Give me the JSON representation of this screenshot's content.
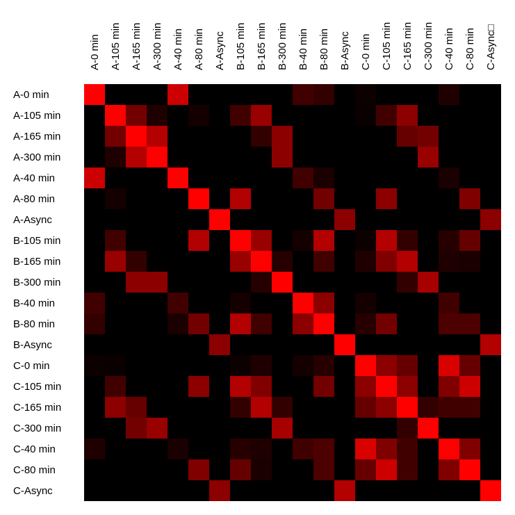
{
  "chart_data": {
    "type": "heatmap",
    "labels": [
      "A-0 min",
      "A-105 min",
      "A-165 min",
      "A-300 min",
      "A-40 min",
      "A-80 min",
      "A-Async",
      "B-105 min",
      "B-165 min",
      "B-300 min",
      "B-40 min",
      "B-80 min",
      "B-Async",
      "C-0 min",
      "C-105 min",
      "C-165 min",
      "C-300 min",
      "C-40 min",
      "C-80 min",
      "C-Async"
    ],
    "col_labels": [
      "A-0 min",
      "A-105 min",
      "A-165 min",
      "A-300 min",
      "A-40 min",
      "A-80 min",
      "A-Async",
      "B-105 min",
      "B-165 min",
      "B-300 min",
      "B-40 min",
      "B-80 min",
      "B-Async",
      "C-0 min",
      "C-105 min",
      "C-165 min",
      "C-300 min",
      "C-40 min",
      "C-80 min",
      "C-Async□"
    ],
    "color_low": "#000000",
    "color_high": "#ff0000",
    "value_range": [
      0,
      1
    ],
    "matrix": [
      [
        1.0,
        0,
        0,
        0,
        0.8,
        0,
        0,
        0,
        0,
        0,
        0.25,
        0.2,
        0,
        0.05,
        0,
        0,
        0,
        0.12,
        0,
        0
      ],
      [
        0,
        1.0,
        0.45,
        0.12,
        0,
        0.08,
        0,
        0.25,
        0.6,
        0,
        0,
        0,
        0,
        0.04,
        0.25,
        0.55,
        0,
        0,
        0,
        0
      ],
      [
        0,
        0.45,
        1.0,
        0.7,
        0,
        0,
        0,
        0,
        0.2,
        0.55,
        0,
        0,
        0,
        0,
        0,
        0.4,
        0.45,
        0,
        0,
        0
      ],
      [
        0,
        0.12,
        0.7,
        1.0,
        0,
        0,
        0,
        0,
        0,
        0.55,
        0,
        0,
        0,
        0,
        0,
        0,
        0.6,
        0,
        0,
        0
      ],
      [
        0.8,
        0,
        0,
        0,
        1.0,
        0,
        0,
        0,
        0,
        0,
        0.25,
        0.1,
        0,
        0,
        0,
        0,
        0,
        0.1,
        0,
        0
      ],
      [
        0,
        0.08,
        0,
        0,
        0,
        1.0,
        0,
        0.7,
        0,
        0,
        0,
        0.45,
        0,
        0,
        0.55,
        0,
        0,
        0,
        0.5,
        0
      ],
      [
        0,
        0,
        0,
        0,
        0,
        0,
        1.0,
        0,
        0,
        0,
        0,
        0,
        0.55,
        0,
        0,
        0,
        0,
        0,
        0,
        0.55
      ],
      [
        0,
        0.25,
        0,
        0,
        0,
        0.7,
        0,
        1.0,
        0.6,
        0,
        0.08,
        0.7,
        0,
        0.05,
        0.7,
        0.2,
        0,
        0.15,
        0.4,
        0
      ],
      [
        0,
        0.6,
        0.2,
        0,
        0,
        0,
        0,
        0.6,
        1.0,
        0.15,
        0,
        0.25,
        0,
        0.12,
        0.5,
        0.7,
        0,
        0.12,
        0.1,
        0
      ],
      [
        0,
        0,
        0.55,
        0.55,
        0,
        0,
        0,
        0,
        0.15,
        1.0,
        0,
        0,
        0,
        0,
        0,
        0.2,
        0.65,
        0,
        0,
        0
      ],
      [
        0.25,
        0,
        0,
        0,
        0.25,
        0,
        0,
        0.08,
        0,
        0,
        1.0,
        0.55,
        0,
        0.08,
        0,
        0,
        0,
        0.25,
        0,
        0
      ],
      [
        0.2,
        0,
        0,
        0,
        0.1,
        0.45,
        0,
        0.7,
        0.25,
        0,
        0.55,
        1.0,
        0,
        0.15,
        0.45,
        0,
        0,
        0.3,
        0.3,
        0
      ],
      [
        0,
        0,
        0,
        0,
        0,
        0,
        0.55,
        0,
        0,
        0,
        0,
        0,
        1.0,
        0,
        0,
        0,
        0,
        0,
        0,
        0.7
      ],
      [
        0.05,
        0.04,
        0,
        0,
        0,
        0,
        0,
        0.05,
        0.12,
        0,
        0.08,
        0.15,
        0,
        1.0,
        0.55,
        0.4,
        0,
        0.85,
        0.4,
        0
      ],
      [
        0,
        0.25,
        0,
        0,
        0,
        0.55,
        0,
        0.7,
        0.5,
        0,
        0,
        0.45,
        0,
        0.55,
        1.0,
        0.55,
        0,
        0.5,
        0.8,
        0
      ],
      [
        0,
        0.55,
        0.4,
        0,
        0,
        0,
        0,
        0.2,
        0.7,
        0.2,
        0,
        0,
        0,
        0.4,
        0.55,
        1.0,
        0.2,
        0.25,
        0.25,
        0
      ],
      [
        0,
        0,
        0.45,
        0.6,
        0,
        0,
        0,
        0,
        0,
        0.65,
        0,
        0,
        0,
        0,
        0,
        0.2,
        1.0,
        0,
        0,
        0
      ],
      [
        0.12,
        0,
        0,
        0,
        0.1,
        0,
        0,
        0.15,
        0.12,
        0,
        0.25,
        0.3,
        0,
        0.85,
        0.5,
        0.25,
        0,
        1.0,
        0.5,
        0
      ],
      [
        0,
        0,
        0,
        0,
        0,
        0.5,
        0,
        0.4,
        0.1,
        0,
        0,
        0.3,
        0,
        0.4,
        0.8,
        0.25,
        0,
        0.5,
        1.0,
        0
      ],
      [
        0,
        0,
        0,
        0,
        0,
        0,
        0.55,
        0,
        0,
        0,
        0,
        0,
        0.7,
        0,
        0,
        0,
        0,
        0,
        0,
        1.0
      ]
    ]
  }
}
